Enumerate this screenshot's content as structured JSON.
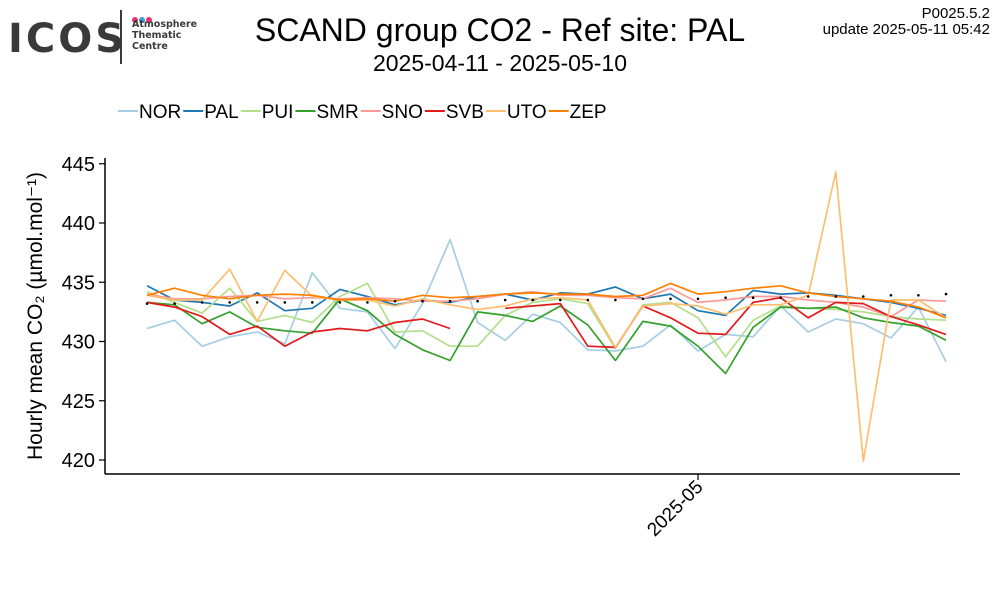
{
  "header": {
    "title": "SCAND group CO2 - Ref site: PAL",
    "subtitle": "2025-04-11 - 2025-05-10",
    "version": "P0025.5.2",
    "update": "update  2025-05-11 05:42",
    "logo": {
      "word": "ICOS",
      "lines": [
        "Atmosphere",
        "Thematic",
        "Centre"
      ],
      "dot_colors": [
        "#e8336d",
        "#3aa0d8",
        "#e8336d"
      ]
    }
  },
  "chart_data": {
    "type": "line",
    "xlabel": "",
    "ylabel": "Hourly mean CO₂ (µmol.mol⁻¹)",
    "ylim": [
      419,
      445.5
    ],
    "yticks": [
      420,
      425,
      430,
      435,
      440,
      445
    ],
    "x_start": "2025-04-10",
    "x_dates": [
      "2025-04-11",
      "2025-04-12",
      "2025-04-13",
      "2025-04-14",
      "2025-04-15",
      "2025-04-16",
      "2025-04-17",
      "2025-04-18",
      "2025-04-19",
      "2025-04-20",
      "2025-04-21",
      "2025-04-22",
      "2025-04-23",
      "2025-04-24",
      "2025-04-25",
      "2025-04-26",
      "2025-04-27",
      "2025-04-28",
      "2025-04-29",
      "2025-04-30",
      "2025-05-01",
      "2025-05-02",
      "2025-05-03",
      "2025-05-04",
      "2025-05-05",
      "2025-05-06",
      "2025-05-07",
      "2025-05-08",
      "2025-05-09",
      "2025-05-10"
    ],
    "xticks": [
      {
        "date": "2025-05-01",
        "label": "2025-05"
      }
    ],
    "legend_position": "top-left",
    "series": [
      {
        "name": "NOR",
        "color": "#a6cee3",
        "values": [
          431.1,
          431.8,
          429.6,
          430.4,
          430.8,
          429.8,
          435.8,
          432.8,
          432.5,
          429.4,
          433.2,
          438.6,
          431.6,
          430.1,
          432.3,
          431.6,
          429.3,
          429.2,
          429.6,
          431.4,
          429.2,
          430.6,
          430.4,
          433.0,
          430.8,
          431.9,
          431.5,
          430.3,
          432.9,
          428.3
        ]
      },
      {
        "name": "PAL",
        "color": "#1f78b4",
        "values": [
          434.7,
          433.5,
          433.3,
          433.0,
          434.1,
          432.6,
          432.8,
          434.4,
          433.8,
          433.1,
          433.5,
          433.3,
          433.8,
          434.0,
          433.5,
          434.1,
          434.0,
          434.6,
          433.6,
          434.0,
          432.6,
          432.2,
          434.3,
          434.0,
          434.1,
          433.9,
          433.6,
          433.3,
          432.8,
          432.2
        ]
      },
      {
        "name": "PUI",
        "color": "#b2df8a",
        "values": [
          434.2,
          433.3,
          432.4,
          434.5,
          431.7,
          432.2,
          431.6,
          433.8,
          434.9,
          430.8,
          430.9,
          429.6,
          429.6,
          432.2,
          433.3,
          433.6,
          433.2,
          429.4,
          433.1,
          433.3,
          432.0,
          428.7,
          431.8,
          433.0,
          432.8,
          432.7,
          432.5,
          432.1,
          431.9,
          431.8
        ]
      },
      {
        "name": "SMR",
        "color": "#33a02c",
        "values": [
          433.3,
          433.1,
          431.5,
          432.5,
          431.2,
          430.9,
          430.7,
          433.6,
          432.6,
          430.6,
          429.3,
          428.4,
          432.5,
          432.2,
          431.7,
          433.0,
          431.4,
          428.4,
          431.7,
          431.3,
          429.6,
          427.3,
          431.2,
          432.9,
          432.8,
          432.9,
          432.0,
          431.6,
          431.3,
          430.1
        ]
      },
      {
        "name": "SNO",
        "color": "#fb9a99",
        "values": [
          434.0,
          433.6,
          433.6,
          433.8,
          433.9,
          433.6,
          433.7,
          433.6,
          433.7,
          433.6,
          433.4,
          433.4,
          433.6,
          434.0,
          434.2,
          433.9,
          433.9,
          433.7,
          433.6,
          434.5,
          433.3,
          433.5,
          433.8,
          433.8,
          433.5,
          433.3,
          432.9,
          432.1,
          433.5,
          433.4
        ]
      },
      {
        "name": "SVB",
        "color": "#e31a1c",
        "values": [
          433.3,
          432.9,
          432.1,
          430.6,
          431.3,
          429.6,
          430.8,
          431.1,
          430.9,
          431.6,
          431.9,
          431.1,
          null,
          432.8,
          433.0,
          433.2,
          429.6,
          429.5,
          433.0,
          432.0,
          430.7,
          430.6,
          433.3,
          433.7,
          432.0,
          433.3,
          433.2,
          432.1,
          431.4,
          430.6
        ]
      },
      {
        "name": "UTO",
        "color": "#fdbf6f",
        "values": [
          433.9,
          433.5,
          433.5,
          436.1,
          431.7,
          436.0,
          433.8,
          433.5,
          433.5,
          433.0,
          433.6,
          433.1,
          432.7,
          433.0,
          433.6,
          433.7,
          433.5,
          429.5,
          433.0,
          433.2,
          433.0,
          432.3,
          433.1,
          433.1,
          433.9,
          444.3,
          419.9,
          433.5,
          433.5,
          432.0
        ]
      },
      {
        "name": "ZEP",
        "color": "#ff7f00",
        "values": [
          433.9,
          434.5,
          433.9,
          433.6,
          433.9,
          434.0,
          433.9,
          433.5,
          433.6,
          433.4,
          433.9,
          433.7,
          433.8,
          434.0,
          434.1,
          434.0,
          434.0,
          433.8,
          433.9,
          434.9,
          434.0,
          434.2,
          434.5,
          434.7,
          434.1,
          433.8,
          433.6,
          433.4,
          432.9,
          432.0
        ]
      }
    ],
    "reference_points": [
      433.2,
      433.2,
      433.3,
      433.3,
      433.3,
      433.3,
      433.3,
      433.3,
      433.3,
      433.4,
      433.4,
      433.4,
      433.4,
      433.5,
      433.5,
      433.5,
      433.5,
      433.5,
      433.6,
      433.6,
      433.6,
      433.7,
      433.7,
      433.7,
      433.8,
      433.8,
      433.8,
      433.9,
      433.9,
      434.0
    ]
  }
}
